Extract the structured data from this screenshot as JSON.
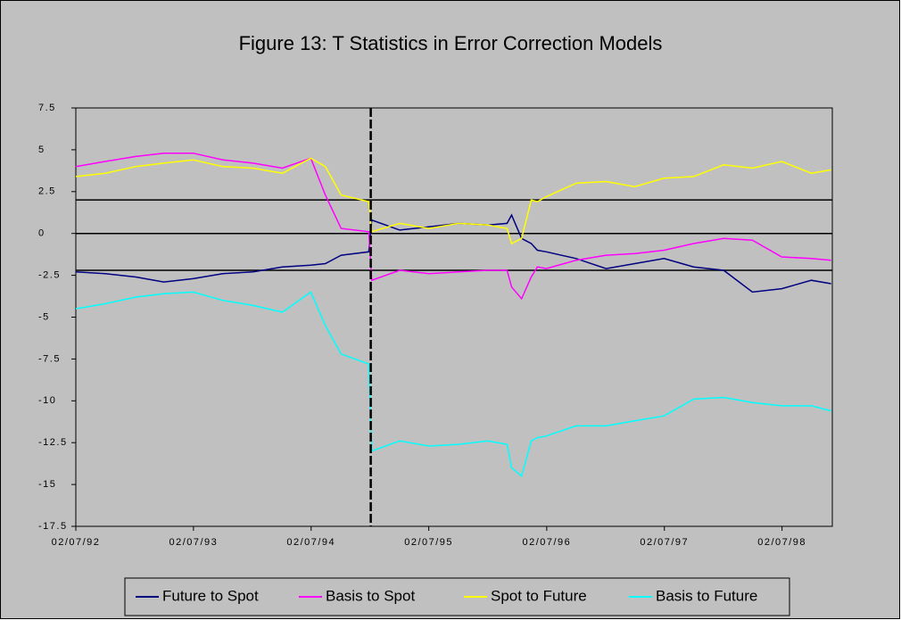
{
  "chart_data": {
    "type": "line",
    "title": "Figure 13: T Statistics in Error Correction Models",
    "x": [
      "1992-07-02",
      "1992-10-01",
      "1993-01-04",
      "1993-04-01",
      "1993-07-01",
      "1993-10-01",
      "1994-01-03",
      "1994-04-04",
      "1994-07-01",
      "1994-08-15",
      "1994-10-03",
      "1994-12-28",
      "1995-01-06",
      "1995-04-03",
      "1995-07-03",
      "1995-10-02",
      "1996-01-02",
      "1996-03-01",
      "1996-03-15",
      "1996-04-15",
      "1996-05-15",
      "1996-06-03",
      "1996-07-01",
      "1996-10-01",
      "1997-01-02",
      "1997-04-01",
      "1997-07-01",
      "1997-10-01",
      "1998-01-02",
      "1998-04-01",
      "1998-07-01",
      "1998-10-01",
      "1998-12-01"
    ],
    "series": [
      {
        "name": "Future to Spot",
        "color": "#000080",
        "values": [
          -2.3,
          -2.4,
          -2.6,
          -2.9,
          -2.7,
          -2.4,
          -2.3,
          -2.0,
          -1.9,
          -1.8,
          -1.3,
          -1.1,
          0.8,
          0.2,
          0.4,
          0.6,
          0.5,
          0.6,
          1.1,
          -0.3,
          -0.6,
          -1.0,
          -1.1,
          -1.5,
          -2.1,
          -1.8,
          -1.5,
          -2.0,
          -2.2,
          -3.5,
          -3.3,
          -2.8,
          -3.0
        ]
      },
      {
        "name": "Basis to Spot",
        "color": "#ff00ff",
        "values": [
          4.0,
          4.3,
          4.6,
          4.8,
          4.8,
          4.4,
          4.2,
          3.9,
          4.5,
          2.3,
          0.3,
          0.1,
          -2.8,
          -2.2,
          -2.4,
          -2.3,
          -2.2,
          -2.2,
          -3.2,
          -3.9,
          -2.6,
          -2.0,
          -2.1,
          -1.6,
          -1.3,
          -1.2,
          -1.0,
          -0.6,
          -0.3,
          -0.4,
          -1.4,
          -1.5,
          -1.6
        ]
      },
      {
        "name": "Spot to Future",
        "color": "#ffff00",
        "values": [
          3.4,
          3.6,
          4.0,
          4.2,
          4.4,
          4.0,
          3.9,
          3.6,
          4.5,
          4.0,
          2.3,
          1.9,
          0.1,
          0.6,
          0.3,
          0.6,
          0.5,
          0.3,
          -0.6,
          -0.3,
          2.0,
          1.9,
          2.2,
          3.0,
          3.1,
          2.8,
          3.3,
          3.4,
          4.1,
          3.9,
          4.3,
          3.6,
          3.8
        ]
      },
      {
        "name": "Basis to Future",
        "color": "#00ffff",
        "values": [
          -4.5,
          -4.2,
          -3.8,
          -3.6,
          -3.5,
          -4.0,
          -4.3,
          -4.7,
          -3.5,
          -5.5,
          -7.2,
          -7.8,
          -13.0,
          -12.4,
          -12.7,
          -12.6,
          -12.4,
          -12.6,
          -14.0,
          -14.5,
          -12.4,
          -12.2,
          -12.1,
          -11.5,
          -11.5,
          -11.2,
          -10.9,
          -9.9,
          -9.8,
          -10.1,
          -10.3,
          -10.3,
          -10.6
        ]
      }
    ],
    "xlim": [
      "1992-07-02",
      "1998-12-05"
    ],
    "xticks": [
      {
        "value": "1992-07-02",
        "label": "02/07/92"
      },
      {
        "value": "1993-07-02",
        "label": "02/07/93"
      },
      {
        "value": "1994-07-02",
        "label": "02/07/94"
      },
      {
        "value": "1995-07-02",
        "label": "02/07/95"
      },
      {
        "value": "1996-07-02",
        "label": "02/07/96"
      },
      {
        "value": "1997-07-02",
        "label": "02/07/97"
      },
      {
        "value": "1998-07-02",
        "label": "02/07/98"
      }
    ],
    "ylim": [
      -17.5,
      7.5
    ],
    "yticks": [
      7.5,
      5,
      2.5,
      0,
      -2.5,
      -5,
      -7.5,
      -10,
      -12.5,
      -15,
      -17.5
    ],
    "hlines": [
      2,
      0,
      -2.2
    ],
    "vline": "1995-01-03",
    "legend": "bottom"
  }
}
